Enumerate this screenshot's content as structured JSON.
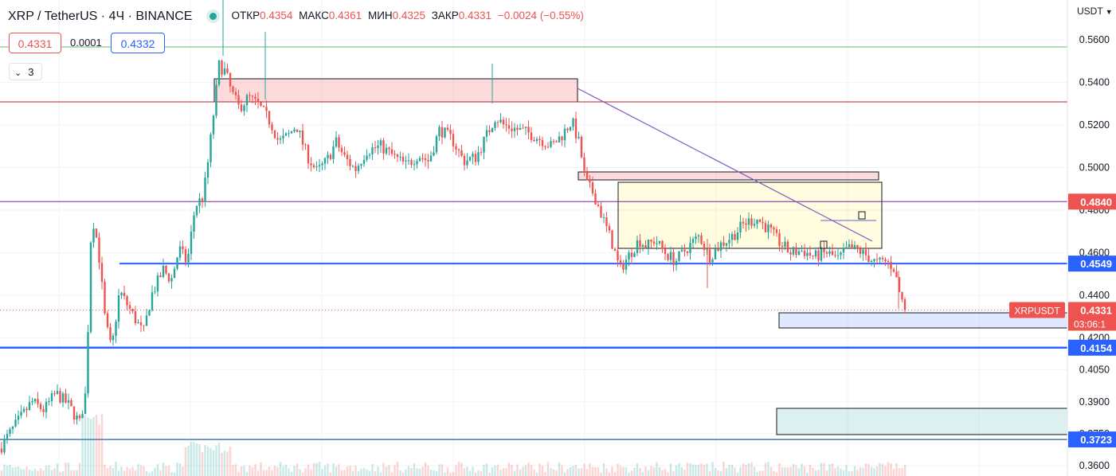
{
  "header": {
    "symbol": "XRP / TetherUS · 4Ч · BINANCE",
    "open_label": "ОТКР",
    "open": "0.4354",
    "high_label": "МАКС",
    "high": "0.4361",
    "low_label": "МИН",
    "low": "0.4325",
    "close_label": "ЗАКР",
    "close": "0.4331",
    "change": "−0.0024 (−0.55%)"
  },
  "trade": {
    "sell": "0.4331",
    "spread": "0.0001",
    "buy": "0.4332"
  },
  "indicators_toggle": {
    "count": "3"
  },
  "axis": {
    "currency": "USDT",
    "currency_icon": "chevron-down-icon"
  },
  "colors": {
    "up": "#26a69a",
    "down": "#ef5350",
    "blue_level": "#2962ff",
    "text": "#131722"
  },
  "chart_data": {
    "type": "candlestick",
    "symbol": "XRPUSDT",
    "ylim": [
      0.3565,
      0.5765
    ],
    "y_ticks": [
      0.56,
      0.54,
      0.52,
      0.5,
      0.48,
      0.46,
      0.44,
      0.42,
      0.405,
      0.39,
      0.375,
      0.36
    ],
    "y_tick_labels": [
      "0.5600",
      "0.5400",
      "0.5200",
      "0.5000",
      "0.4800",
      "0.4600",
      "0.4400",
      "0.4200",
      "0.4050",
      "0.3900",
      "0.3750",
      "0.3600"
    ],
    "path": [
      [
        0,
        0.368
      ],
      [
        10,
        0.374
      ],
      [
        25,
        0.382
      ],
      [
        40,
        0.39
      ],
      [
        55,
        0.386
      ],
      [
        70,
        0.394
      ],
      [
        85,
        0.389
      ],
      [
        100,
        0.38
      ],
      [
        108,
        0.395
      ],
      [
        115,
        0.478
      ],
      [
        120,
        0.47
      ],
      [
        125,
        0.456
      ],
      [
        132,
        0.428
      ],
      [
        140,
        0.414
      ],
      [
        150,
        0.442
      ],
      [
        165,
        0.432
      ],
      [
        180,
        0.422
      ],
      [
        190,
        0.44
      ],
      [
        205,
        0.452
      ],
      [
        215,
        0.447
      ],
      [
        225,
        0.462
      ],
      [
        235,
        0.455
      ],
      [
        245,
        0.482
      ],
      [
        255,
        0.486
      ],
      [
        262,
        0.505
      ],
      [
        268,
        0.525
      ],
      [
        275,
        0.548
      ],
      [
        283,
        0.545
      ],
      [
        290,
        0.536
      ],
      [
        300,
        0.528
      ],
      [
        312,
        0.533
      ],
      [
        325,
        0.529
      ],
      [
        340,
        0.521
      ],
      [
        350,
        0.512
      ],
      [
        362,
        0.515
      ],
      [
        372,
        0.52
      ],
      [
        385,
        0.506
      ],
      [
        398,
        0.498
      ],
      [
        410,
        0.503
      ],
      [
        422,
        0.512
      ],
      [
        432,
        0.505
      ],
      [
        446,
        0.499
      ],
      [
        460,
        0.508
      ],
      [
        478,
        0.51
      ],
      [
        495,
        0.505
      ],
      [
        510,
        0.501
      ],
      [
        525,
        0.506
      ],
      [
        538,
        0.503
      ],
      [
        552,
        0.518
      ],
      [
        568,
        0.513
      ],
      [
        582,
        0.503
      ],
      [
        598,
        0.505
      ],
      [
        612,
        0.516
      ],
      [
        622,
        0.524
      ],
      [
        632,
        0.52
      ],
      [
        648,
        0.518
      ],
      [
        665,
        0.516
      ],
      [
        680,
        0.513
      ],
      [
        692,
        0.51
      ],
      [
        705,
        0.515
      ],
      [
        718,
        0.522
      ],
      [
        728,
        0.51
      ],
      [
        735,
        0.493
      ],
      [
        745,
        0.488
      ],
      [
        756,
        0.477
      ],
      [
        768,
        0.465
      ],
      [
        778,
        0.452
      ],
      [
        790,
        0.459
      ],
      [
        802,
        0.466
      ],
      [
        812,
        0.463
      ],
      [
        822,
        0.466
      ],
      [
        835,
        0.46
      ],
      [
        848,
        0.456
      ],
      [
        862,
        0.462
      ],
      [
        878,
        0.468
      ],
      [
        890,
        0.458
      ],
      [
        905,
        0.464
      ],
      [
        920,
        0.468
      ],
      [
        935,
        0.474
      ],
      [
        950,
        0.476
      ],
      [
        965,
        0.471
      ],
      [
        978,
        0.465
      ],
      [
        992,
        0.46
      ],
      [
        1008,
        0.461
      ],
      [
        1022,
        0.458
      ],
      [
        1038,
        0.46
      ],
      [
        1052,
        0.457
      ],
      [
        1065,
        0.462
      ],
      [
        1078,
        0.461
      ],
      [
        1090,
        0.458
      ],
      [
        1100,
        0.455
      ],
      [
        1112,
        0.456
      ],
      [
        1122,
        0.453
      ],
      [
        1130,
        0.44
      ],
      [
        1137,
        0.4331
      ]
    ],
    "levels": [
      {
        "price": 0.484,
        "label": "0.4840",
        "color": "#ef5350"
      },
      {
        "price": 0.4549,
        "label": "0.4549",
        "color": "#2962ff"
      },
      {
        "price": 0.4154,
        "label": "0.4154",
        "color": "#2962ff"
      },
      {
        "price": 0.3723,
        "label": "0.3723",
        "color": "#2962ff"
      }
    ],
    "last_price": {
      "symbol": "XRPUSDT",
      "price": "0.4331",
      "countdown": "03:06:1"
    }
  }
}
